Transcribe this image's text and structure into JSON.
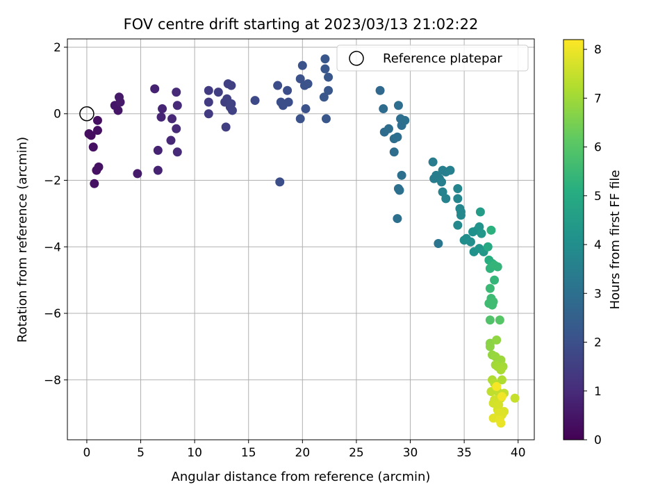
{
  "chart_data": {
    "type": "scatter",
    "title": "FOV centre drift starting at 2023/03/13 21:02:22",
    "xlabel": "Angular distance from reference (arcmin)",
    "ylabel": "Rotation from reference (arcmin)",
    "xlim": [
      -1.8,
      41.5
    ],
    "ylim": [
      -9.8,
      2.25
    ],
    "xticks": [
      0,
      5,
      10,
      15,
      20,
      25,
      30,
      35,
      40
    ],
    "yticks": [
      -8,
      -6,
      -4,
      -2,
      0,
      2
    ],
    "x_tick_labels": [
      "0",
      "5",
      "10",
      "15",
      "20",
      "25",
      "30",
      "35",
      "40"
    ],
    "y_tick_labels": [
      "−8",
      "−6",
      "−4",
      "−2",
      "0",
      "2"
    ],
    "grid": true,
    "legend": {
      "placement": "top-right",
      "entries": [
        "Reference platepar"
      ]
    },
    "reference_point": {
      "x": 0,
      "y": 0
    },
    "colorbar": {
      "label": "Hours from first FF file",
      "colormap": "viridis",
      "range": [
        0,
        8.2
      ],
      "ticks": [
        0,
        1,
        2,
        3,
        4,
        5,
        6,
        7,
        8
      ],
      "tick_labels": [
        "0",
        "1",
        "2",
        "3",
        "4",
        "5",
        "6",
        "7",
        "8"
      ]
    },
    "points": [
      {
        "x": 0.2,
        "y": -0.6,
        "h": 0.3
      },
      {
        "x": 0.4,
        "y": -0.65,
        "h": 0.3
      },
      {
        "x": 0.6,
        "y": -1.0,
        "h": 0.35
      },
      {
        "x": 1.0,
        "y": -0.2,
        "h": 0.35
      },
      {
        "x": 1.0,
        "y": -0.5,
        "h": 0.35
      },
      {
        "x": 0.9,
        "y": -1.7,
        "h": 0.4
      },
      {
        "x": 1.1,
        "y": -1.6,
        "h": 0.4
      },
      {
        "x": 0.7,
        "y": -2.1,
        "h": 0.4
      },
      {
        "x": 2.6,
        "y": 0.25,
        "h": 0.5
      },
      {
        "x": 2.9,
        "y": 0.1,
        "h": 0.5
      },
      {
        "x": 3.0,
        "y": 0.5,
        "h": 0.55
      },
      {
        "x": 3.1,
        "y": 0.35,
        "h": 0.55
      },
      {
        "x": 4.7,
        "y": -1.8,
        "h": 0.6
      },
      {
        "x": 6.3,
        "y": 0.75,
        "h": 0.8
      },
      {
        "x": 6.6,
        "y": -1.1,
        "h": 0.8
      },
      {
        "x": 6.6,
        "y": -1.7,
        "h": 0.8
      },
      {
        "x": 7.0,
        "y": 0.15,
        "h": 0.85
      },
      {
        "x": 6.9,
        "y": -0.1,
        "h": 0.85
      },
      {
        "x": 7.8,
        "y": -0.8,
        "h": 0.9
      },
      {
        "x": 7.9,
        "y": -0.15,
        "h": 0.9
      },
      {
        "x": 8.3,
        "y": 0.65,
        "h": 0.95
      },
      {
        "x": 8.4,
        "y": 0.25,
        "h": 0.95
      },
      {
        "x": 8.3,
        "y": -0.45,
        "h": 0.95
      },
      {
        "x": 8.4,
        "y": -1.15,
        "h": 0.95
      },
      {
        "x": 11.3,
        "y": 0.7,
        "h": 1.4
      },
      {
        "x": 11.3,
        "y": 0.35,
        "h": 1.4
      },
      {
        "x": 11.3,
        "y": 0.0,
        "h": 1.4
      },
      {
        "x": 12.2,
        "y": 0.65,
        "h": 1.5
      },
      {
        "x": 12.8,
        "y": 0.35,
        "h": 1.5
      },
      {
        "x": 12.9,
        "y": -0.4,
        "h": 1.5
      },
      {
        "x": 13.1,
        "y": 0.9,
        "h": 1.55
      },
      {
        "x": 13.4,
        "y": 0.85,
        "h": 1.55
      },
      {
        "x": 13.0,
        "y": 0.45,
        "h": 1.55
      },
      {
        "x": 13.4,
        "y": 0.3,
        "h": 1.6
      },
      {
        "x": 13.5,
        "y": 0.1,
        "h": 1.6
      },
      {
        "x": 13.3,
        "y": 0.2,
        "h": 1.6
      },
      {
        "x": 15.6,
        "y": 0.4,
        "h": 1.8
      },
      {
        "x": 17.7,
        "y": 0.85,
        "h": 1.9
      },
      {
        "x": 18.0,
        "y": 0.35,
        "h": 1.95
      },
      {
        "x": 18.2,
        "y": 0.25,
        "h": 1.95
      },
      {
        "x": 18.6,
        "y": 0.7,
        "h": 1.95
      },
      {
        "x": 18.7,
        "y": 0.35,
        "h": 1.95
      },
      {
        "x": 17.9,
        "y": -2.05,
        "h": 1.95
      },
      {
        "x": 19.8,
        "y": 1.05,
        "h": 2.05
      },
      {
        "x": 20.0,
        "y": 1.45,
        "h": 2.05
      },
      {
        "x": 20.2,
        "y": 0.85,
        "h": 2.05
      },
      {
        "x": 20.5,
        "y": 0.9,
        "h": 2.05
      },
      {
        "x": 20.3,
        "y": 0.15,
        "h": 2.05
      },
      {
        "x": 19.8,
        "y": -0.15,
        "h": 2.05
      },
      {
        "x": 22.1,
        "y": 1.65,
        "h": 2.2
      },
      {
        "x": 22.1,
        "y": 1.35,
        "h": 2.2
      },
      {
        "x": 22.4,
        "y": 1.1,
        "h": 2.2
      },
      {
        "x": 22.4,
        "y": 0.7,
        "h": 2.2
      },
      {
        "x": 22.0,
        "y": 0.5,
        "h": 2.2
      },
      {
        "x": 22.2,
        "y": -0.15,
        "h": 2.2
      },
      {
        "x": 27.2,
        "y": 0.7,
        "h": 2.8
      },
      {
        "x": 27.5,
        "y": 0.15,
        "h": 2.85
      },
      {
        "x": 27.6,
        "y": -0.55,
        "h": 2.85
      },
      {
        "x": 28.0,
        "y": -0.45,
        "h": 2.9
      },
      {
        "x": 28.5,
        "y": -0.75,
        "h": 2.9
      },
      {
        "x": 28.5,
        "y": -1.15,
        "h": 2.9
      },
      {
        "x": 28.9,
        "y": 0.25,
        "h": 2.95
      },
      {
        "x": 28.8,
        "y": -0.7,
        "h": 2.95
      },
      {
        "x": 29.1,
        "y": -0.15,
        "h": 2.95
      },
      {
        "x": 29.2,
        "y": -0.35,
        "h": 2.95
      },
      {
        "x": 29.5,
        "y": -0.2,
        "h": 3.0
      },
      {
        "x": 29.2,
        "y": -1.85,
        "h": 3.0
      },
      {
        "x": 29.0,
        "y": -2.3,
        "h": 3.0
      },
      {
        "x": 28.9,
        "y": -2.25,
        "h": 3.0
      },
      {
        "x": 28.8,
        "y": -3.15,
        "h": 3.0
      },
      {
        "x": 32.6,
        "y": -3.9,
        "h": 3.2
      },
      {
        "x": 32.1,
        "y": -1.45,
        "h": 3.4
      },
      {
        "x": 32.2,
        "y": -1.95,
        "h": 3.4
      },
      {
        "x": 32.4,
        "y": -1.85,
        "h": 3.45
      },
      {
        "x": 32.7,
        "y": -1.95,
        "h": 3.45
      },
      {
        "x": 32.9,
        "y": -2.05,
        "h": 3.5
      },
      {
        "x": 33.0,
        "y": -1.7,
        "h": 3.5
      },
      {
        "x": 33.3,
        "y": -1.75,
        "h": 3.5
      },
      {
        "x": 33.7,
        "y": -1.7,
        "h": 3.55
      },
      {
        "x": 33.0,
        "y": -2.35,
        "h": 3.6
      },
      {
        "x": 33.3,
        "y": -2.55,
        "h": 3.6
      },
      {
        "x": 34.4,
        "y": -2.25,
        "h": 3.7
      },
      {
        "x": 34.4,
        "y": -2.55,
        "h": 3.7
      },
      {
        "x": 34.6,
        "y": -2.85,
        "h": 3.75
      },
      {
        "x": 34.7,
        "y": -2.95,
        "h": 3.8
      },
      {
        "x": 34.7,
        "y": -3.05,
        "h": 3.8
      },
      {
        "x": 34.4,
        "y": -3.35,
        "h": 3.8
      },
      {
        "x": 35.0,
        "y": -3.8,
        "h": 4.0
      },
      {
        "x": 35.2,
        "y": -3.75,
        "h": 4.0
      },
      {
        "x": 35.6,
        "y": -3.85,
        "h": 4.05
      },
      {
        "x": 35.8,
        "y": -3.55,
        "h": 4.1
      },
      {
        "x": 36.2,
        "y": -3.5,
        "h": 4.15
      },
      {
        "x": 35.9,
        "y": -4.15,
        "h": 4.15
      },
      {
        "x": 36.4,
        "y": -3.4,
        "h": 4.2
      },
      {
        "x": 36.4,
        "y": -4.05,
        "h": 4.25
      },
      {
        "x": 36.6,
        "y": -3.6,
        "h": 4.3
      },
      {
        "x": 36.8,
        "y": -4.15,
        "h": 4.35
      },
      {
        "x": 36.5,
        "y": -2.95,
        "h": 4.5
      },
      {
        "x": 37.2,
        "y": -4.0,
        "h": 4.9
      },
      {
        "x": 37.5,
        "y": -3.5,
        "h": 5.2
      },
      {
        "x": 37.3,
        "y": -4.4,
        "h": 5.1
      },
      {
        "x": 37.6,
        "y": -4.5,
        "h": 5.2
      },
      {
        "x": 37.4,
        "y": -4.65,
        "h": 5.3
      },
      {
        "x": 37.8,
        "y": -4.55,
        "h": 5.35
      },
      {
        "x": 38.1,
        "y": -4.6,
        "h": 5.35
      },
      {
        "x": 37.8,
        "y": -5.0,
        "h": 5.4
      },
      {
        "x": 37.4,
        "y": -5.25,
        "h": 5.5
      },
      {
        "x": 37.5,
        "y": -5.55,
        "h": 5.55
      },
      {
        "x": 37.3,
        "y": -5.7,
        "h": 5.6
      },
      {
        "x": 37.6,
        "y": -5.75,
        "h": 5.6
      },
      {
        "x": 37.7,
        "y": -5.65,
        "h": 5.6
      },
      {
        "x": 37.4,
        "y": -6.2,
        "h": 5.9
      },
      {
        "x": 38.3,
        "y": -6.2,
        "h": 6.0
      },
      {
        "x": 37.4,
        "y": -6.9,
        "h": 6.7
      },
      {
        "x": 37.4,
        "y": -7.0,
        "h": 6.75
      },
      {
        "x": 38.0,
        "y": -6.8,
        "h": 6.8
      },
      {
        "x": 37.6,
        "y": -7.25,
        "h": 6.85
      },
      {
        "x": 37.9,
        "y": -7.3,
        "h": 6.9
      },
      {
        "x": 38.4,
        "y": -7.4,
        "h": 6.95
      },
      {
        "x": 37.9,
        "y": -7.55,
        "h": 7.0
      },
      {
        "x": 38.1,
        "y": -7.6,
        "h": 7.05
      },
      {
        "x": 38.6,
        "y": -7.6,
        "h": 7.05
      },
      {
        "x": 38.4,
        "y": -7.7,
        "h": 7.1
      },
      {
        "x": 37.6,
        "y": -8.0,
        "h": 7.2
      },
      {
        "x": 38.5,
        "y": -8.0,
        "h": 7.2
      },
      {
        "x": 37.8,
        "y": -8.1,
        "h": 7.3
      },
      {
        "x": 38.0,
        "y": -8.2,
        "h": 7.35
      },
      {
        "x": 37.5,
        "y": -8.35,
        "h": 7.4
      },
      {
        "x": 38.1,
        "y": -8.35,
        "h": 7.4
      },
      {
        "x": 38.7,
        "y": -8.4,
        "h": 7.45
      },
      {
        "x": 39.7,
        "y": -8.55,
        "h": 7.5
      },
      {
        "x": 37.8,
        "y": -8.6,
        "h": 7.6
      },
      {
        "x": 38.4,
        "y": -8.55,
        "h": 7.6
      },
      {
        "x": 37.7,
        "y": -8.7,
        "h": 7.65
      },
      {
        "x": 38.2,
        "y": -8.75,
        "h": 7.7
      },
      {
        "x": 38.1,
        "y": -8.9,
        "h": 7.7
      },
      {
        "x": 38.7,
        "y": -8.95,
        "h": 7.75
      },
      {
        "x": 38.2,
        "y": -9.0,
        "h": 7.8
      },
      {
        "x": 38.5,
        "y": -9.05,
        "h": 7.8
      },
      {
        "x": 37.7,
        "y": -9.15,
        "h": 7.85
      },
      {
        "x": 38.3,
        "y": -9.2,
        "h": 7.9
      },
      {
        "x": 38.4,
        "y": -9.3,
        "h": 7.95
      },
      {
        "x": 38.5,
        "y": -8.5,
        "h": 8.05
      },
      {
        "x": 38.0,
        "y": -8.2,
        "h": 8.1
      }
    ]
  }
}
